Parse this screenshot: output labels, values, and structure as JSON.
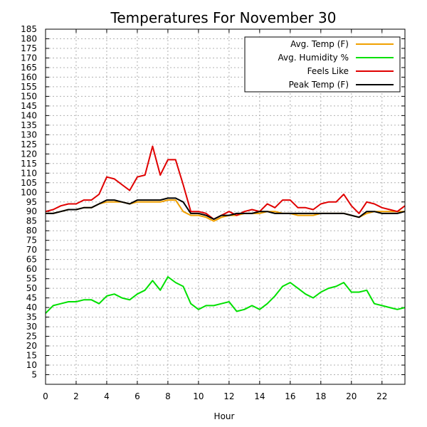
{
  "chart_data": {
    "type": "line",
    "title": "Temperatures For November 30",
    "xlabel": "Hour",
    "ylabel": "",
    "xlim": [
      0,
      23.5
    ],
    "ylim": [
      0,
      185
    ],
    "xticks": [
      0,
      2,
      4,
      6,
      8,
      10,
      12,
      14,
      16,
      18,
      20,
      22
    ],
    "yticks": [
      5,
      10,
      15,
      20,
      25,
      30,
      35,
      40,
      45,
      50,
      55,
      60,
      65,
      70,
      75,
      80,
      85,
      90,
      95,
      100,
      105,
      110,
      115,
      120,
      125,
      130,
      135,
      140,
      145,
      150,
      155,
      160,
      165,
      170,
      175,
      180,
      185
    ],
    "grid": true,
    "legend_position": "top-right",
    "x": [
      0,
      0.5,
      1,
      1.5,
      2,
      2.5,
      3,
      3.5,
      4,
      4.5,
      5,
      5.5,
      6,
      6.5,
      7,
      7.5,
      8,
      8.5,
      9,
      9.5,
      10,
      10.5,
      11,
      11.5,
      12,
      12.5,
      13,
      13.5,
      14,
      14.5,
      15,
      15.5,
      16,
      16.5,
      17,
      17.5,
      18,
      18.5,
      19,
      19.5,
      20,
      20.5,
      21,
      21.5,
      22,
      22.5,
      23,
      23.5
    ],
    "series": [
      {
        "name": "Avg. Temp (F)",
        "color": "#f0a000",
        "values": [
          89,
          89,
          90,
          91,
          91,
          92,
          92,
          94,
          95,
          95,
          95,
          94,
          95,
          95,
          95,
          95,
          96,
          96,
          90,
          88,
          88,
          87,
          85,
          87,
          88,
          88,
          89,
          89,
          89,
          90,
          90,
          89,
          89,
          88,
          88,
          88,
          89,
          89,
          89,
          89,
          88,
          87,
          89,
          90,
          90,
          90,
          90,
          90
        ]
      },
      {
        "name": "Avg. Humidity %",
        "color": "#00e000",
        "values": [
          37,
          41,
          42,
          43,
          43,
          44,
          44,
          42,
          46,
          47,
          45,
          44,
          47,
          49,
          54,
          49,
          56,
          53,
          51,
          42,
          39,
          41,
          41,
          42,
          43,
          38,
          39,
          41,
          39,
          42,
          46,
          51,
          53,
          50,
          47,
          45,
          48,
          50,
          51,
          53,
          48,
          48,
          49,
          42,
          41,
          40,
          39,
          40
        ]
      },
      {
        "name": "Feels Like",
        "color": "#e00000",
        "values": [
          90,
          91,
          93,
          94,
          94,
          96,
          96,
          99,
          108,
          107,
          104,
          101,
          108,
          109,
          124,
          109,
          117,
          117,
          104,
          90,
          90,
          89,
          86,
          88,
          90,
          88,
          90,
          91,
          90,
          94,
          92,
          96,
          96,
          92,
          92,
          91,
          94,
          95,
          95,
          99,
          93,
          89,
          95,
          94,
          92,
          91,
          90,
          93
        ]
      },
      {
        "name": "Peak Temp (F)",
        "color": "#000000",
        "values": [
          89,
          89,
          90,
          91,
          91,
          92,
          92,
          94,
          96,
          96,
          95,
          94,
          96,
          96,
          96,
          96,
          97,
          97,
          95,
          89,
          89,
          88,
          86,
          88,
          88,
          89,
          89,
          89,
          90,
          90,
          89,
          89,
          89,
          89,
          89,
          89,
          89,
          89,
          89,
          89,
          88,
          87,
          90,
          90,
          89,
          89,
          89,
          90
        ]
      }
    ]
  }
}
